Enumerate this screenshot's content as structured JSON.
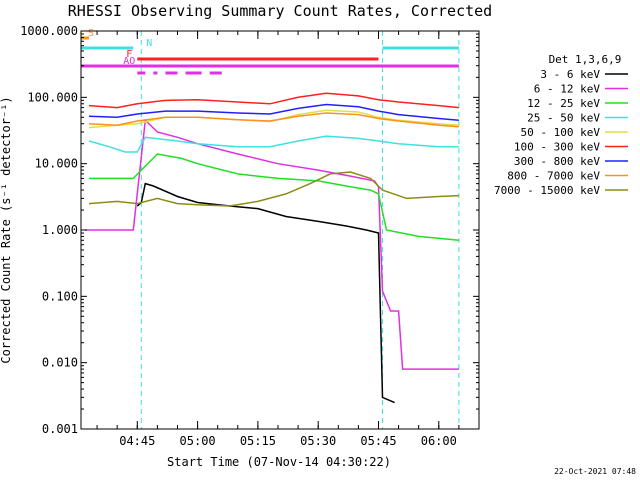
{
  "chart_data": {
    "type": "line",
    "title": "RHESSI Observing Summary Count Rates, Corrected",
    "xlabel": "Start Time (07-Nov-14 04:30:22)",
    "ylabel": "Corrected Count Rate (s⁻¹ detector⁻¹)",
    "yscale": "log",
    "ylim": [
      0.001,
      1000
    ],
    "xlim": [
      "04:31",
      "06:10"
    ],
    "x_ticks": [
      "04:45",
      "05:00",
      "05:15",
      "05:30",
      "05:45",
      "06:00"
    ],
    "y_ticks": [
      "0.001",
      "0.010",
      "0.100",
      "1.000",
      "10.000",
      "100.000",
      "1000.000"
    ],
    "legend_title": "Det 1,3,6,9",
    "legend_position": "right",
    "footer_date": "22-Oct-2021 07:48",
    "series": [
      {
        "name": "3 - 6 keV",
        "color": "#000000",
        "points": [
          [
            "04:45",
            2.3
          ],
          [
            "04:46",
            2.6
          ],
          [
            "04:47",
            5.0
          ],
          [
            "04:49",
            4.6
          ],
          [
            "04:55",
            3.2
          ],
          [
            "05:00",
            2.6
          ],
          [
            "05:08",
            2.3
          ],
          [
            "05:15",
            2.1
          ],
          [
            "05:22",
            1.6
          ],
          [
            "05:30",
            1.35
          ],
          [
            "05:37",
            1.15
          ],
          [
            "05:42",
            1.0
          ],
          [
            "05:45",
            0.9
          ],
          [
            "05:46",
            0.003
          ],
          [
            "05:49",
            0.0025
          ]
        ]
      },
      {
        "name": "6 - 12 keV",
        "color": "#e030e0",
        "points": [
          [
            "04:32",
            1.0
          ],
          [
            "04:44",
            1.0
          ],
          [
            "04:47",
            45
          ],
          [
            "04:50",
            30
          ],
          [
            "04:55",
            25
          ],
          [
            "05:00",
            20
          ],
          [
            "05:10",
            14
          ],
          [
            "05:20",
            10
          ],
          [
            "05:30",
            8
          ],
          [
            "05:38",
            6.5
          ],
          [
            "05:44",
            5.5
          ],
          [
            "05:45",
            4.5
          ],
          [
            "05:46",
            0.12
          ],
          [
            "05:48",
            0.06
          ],
          [
            "05:50",
            0.06
          ],
          [
            "05:51",
            0.008
          ],
          [
            "06:05",
            0.008
          ]
        ]
      },
      {
        "name": "12 - 25 keV",
        "color": "#20e020",
        "points": [
          [
            "04:33",
            6
          ],
          [
            "04:44",
            6
          ],
          [
            "04:46",
            8
          ],
          [
            "04:50",
            14
          ],
          [
            "04:56",
            12
          ],
          [
            "05:00",
            10
          ],
          [
            "05:10",
            7
          ],
          [
            "05:20",
            6
          ],
          [
            "05:30",
            5.5
          ],
          [
            "05:38",
            4.5
          ],
          [
            "05:43",
            4
          ],
          [
            "05:45",
            3.5
          ],
          [
            "05:47",
            1.0
          ],
          [
            "05:55",
            0.8
          ],
          [
            "06:05",
            0.7
          ]
        ]
      },
      {
        "name": "25 - 50 keV",
        "color": "#40e0e0",
        "points": [
          [
            "04:33",
            22
          ],
          [
            "04:38",
            18
          ],
          [
            "04:42",
            15
          ],
          [
            "04:45",
            15
          ],
          [
            "04:47",
            25
          ],
          [
            "04:55",
            22
          ],
          [
            "05:00",
            20
          ],
          [
            "05:10",
            18
          ],
          [
            "05:18",
            18
          ],
          [
            "05:25",
            22
          ],
          [
            "05:32",
            26
          ],
          [
            "05:40",
            24
          ],
          [
            "05:45",
            22
          ],
          [
            "05:50",
            20
          ],
          [
            "06:00",
            18
          ],
          [
            "06:05",
            18
          ]
        ]
      },
      {
        "name": "50 - 100 keV",
        "color": "#e0e040",
        "points": [
          [
            "04:33",
            35
          ],
          [
            "04:40",
            38
          ],
          [
            "04:45",
            40
          ],
          [
            "04:52",
            50
          ],
          [
            "05:00",
            50
          ],
          [
            "05:10",
            46
          ],
          [
            "05:18",
            43
          ],
          [
            "05:25",
            55
          ],
          [
            "05:32",
            64
          ],
          [
            "05:40",
            60
          ],
          [
            "05:45",
            50
          ],
          [
            "05:50",
            45
          ],
          [
            "06:00",
            40
          ],
          [
            "06:05",
            38
          ]
        ]
      },
      {
        "name": "100 - 300 keV",
        "color": "#ff2020",
        "points": [
          [
            "04:33",
            75
          ],
          [
            "04:40",
            70
          ],
          [
            "04:45",
            80
          ],
          [
            "04:52",
            90
          ],
          [
            "05:00",
            92
          ],
          [
            "05:10",
            85
          ],
          [
            "05:18",
            80
          ],
          [
            "05:25",
            100
          ],
          [
            "05:32",
            115
          ],
          [
            "05:40",
            105
          ],
          [
            "05:45",
            92
          ],
          [
            "05:50",
            85
          ],
          [
            "06:00",
            75
          ],
          [
            "06:05",
            70
          ]
        ]
      },
      {
        "name": "300 - 800 keV",
        "color": "#2020ff",
        "points": [
          [
            "04:33",
            52
          ],
          [
            "04:40",
            50
          ],
          [
            "04:45",
            56
          ],
          [
            "04:52",
            62
          ],
          [
            "05:00",
            62
          ],
          [
            "05:10",
            58
          ],
          [
            "05:18",
            56
          ],
          [
            "05:25",
            68
          ],
          [
            "05:32",
            78
          ],
          [
            "05:40",
            72
          ],
          [
            "05:45",
            62
          ],
          [
            "05:50",
            55
          ],
          [
            "06:00",
            48
          ],
          [
            "06:05",
            45
          ]
        ]
      },
      {
        "name": "800 - 7000 keV",
        "color": "#ff9020",
        "points": [
          [
            "04:33",
            40
          ],
          [
            "04:40",
            38
          ],
          [
            "04:45",
            44
          ],
          [
            "04:52",
            50
          ],
          [
            "05:00",
            50
          ],
          [
            "05:10",
            46
          ],
          [
            "05:18",
            44
          ],
          [
            "05:25",
            52
          ],
          [
            "05:32",
            58
          ],
          [
            "05:40",
            55
          ],
          [
            "05:45",
            48
          ],
          [
            "05:50",
            44
          ],
          [
            "06:00",
            38
          ],
          [
            "06:05",
            36
          ]
        ]
      },
      {
        "name": "7000 - 15000 keV",
        "color": "#8c8c14",
        "points": [
          [
            "04:33",
            2.5
          ],
          [
            "04:40",
            2.7
          ],
          [
            "04:45",
            2.5
          ],
          [
            "04:50",
            3.0
          ],
          [
            "04:55",
            2.5
          ],
          [
            "05:00",
            2.4
          ],
          [
            "05:08",
            2.3
          ],
          [
            "05:15",
            2.7
          ],
          [
            "05:22",
            3.5
          ],
          [
            "05:28",
            5.0
          ],
          [
            "05:33",
            7.0
          ],
          [
            "05:38",
            7.5
          ],
          [
            "05:43",
            6.0
          ],
          [
            "05:46",
            4.0
          ],
          [
            "05:52",
            3.0
          ],
          [
            "06:00",
            3.2
          ],
          [
            "06:05",
            3.3
          ]
        ]
      }
    ],
    "flags": [
      {
        "label": "S",
        "color": "#ff9020",
        "segments": [
          [
            "04:31",
            "04:33"
          ]
        ]
      },
      {
        "label": "N",
        "color": "#40e0e0",
        "segments": [
          [
            "04:31",
            "04:44"
          ],
          [
            "05:46",
            "06:05"
          ]
        ]
      },
      {
        "label": "F",
        "color": "#ff2020",
        "segments": [
          [
            "04:45",
            "05:45"
          ]
        ]
      },
      {
        "label": "AO",
        "color": "#e030e0",
        "segments": [
          [
            "04:31",
            "06:05"
          ]
        ]
      },
      {
        "label": "",
        "color": "#e030e0",
        "segments": [
          [
            "04:45",
            "04:47"
          ],
          [
            "04:49",
            "04:50"
          ],
          [
            "04:52",
            "04:55"
          ],
          [
            "04:57",
            "05:01"
          ],
          [
            "05:03",
            "05:06"
          ]
        ]
      }
    ],
    "vertical_lines": [
      {
        "x": "04:31",
        "color": "#40e0e0"
      },
      {
        "x": "04:46",
        "color": "#40e0e0"
      },
      {
        "x": "05:46",
        "color": "#40e0e0"
      },
      {
        "x": "06:05",
        "color": "#40e0e0"
      }
    ]
  }
}
